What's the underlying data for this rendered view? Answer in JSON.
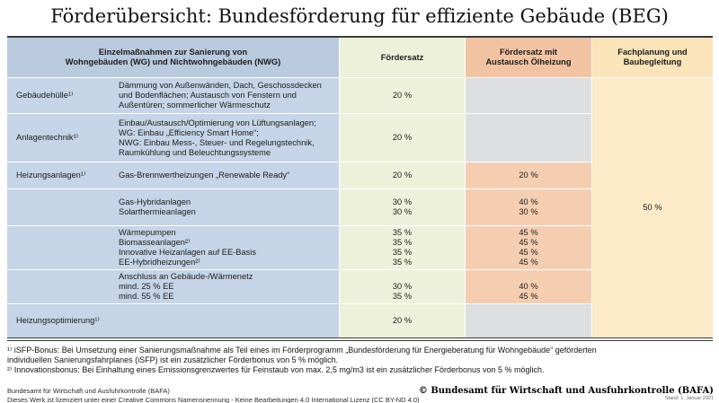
{
  "title": "Förderübersicht: Bundesförderung für effiziente Gebäude (BEG)",
  "table": {
    "headers": {
      "measures": "Einzelmaßnahmen zur Sanierung von\nWohngebäuden (WG) und Nichtwohngebäuden (NWG)",
      "rate": "Fördersatz",
      "rate_oil": "Fördersatz mit\nAustausch Ölheizung",
      "planning": "Fachplanung und\nBaubegleitung"
    },
    "planning_value": "50 %",
    "rows": [
      {
        "category": "Gebäudehülle¹⁾",
        "measures": "Dämmung von Außenwänden, Dach, Geschossdecken\nund Bodenflächen; Austausch von Fenstern und\nAußentüren; sommerlicher Wärmeschutz",
        "rate": "20 %",
        "rate_oil": ""
      },
      {
        "category": "Anlagentechnik¹⁾",
        "measures": "Einbau/Austausch/Optimierung von Lüftungsanlagen;\nWG: Einbau „Efficiency Smart Home“;\nNWG: Einbau Mess-, Steuer- und Regelungstechnik,\nRaumkühlung und Beleuchtungssysteme",
        "rate": "20 %",
        "rate_oil": ""
      },
      {
        "category": "Heizungsanlagen¹⁾",
        "measures": "Gas-Brennwertheizungen „Renewable Ready“",
        "rate": "20 %",
        "rate_oil": "20 %"
      },
      {
        "category": "",
        "measures": "Gas-Hybridanlagen\nSolarthermieanlagen",
        "rate": "30 %\n30 %",
        "rate_oil": "40 %\n30 %"
      },
      {
        "category": "",
        "measures": "Wärmepumpen\nBiomasseanlagen²⁾\nInnovative Heizanlagen auf EE-Basis\nEE-Hybridheizungen²⁾",
        "rate": "35 %\n35 %\n35 %\n35 %",
        "rate_oil": "45 %\n45 %\n45 %\n45 %"
      },
      {
        "category": "",
        "measures": "Anschluss an Gebäude-/Wärmenetz\nmind. 25 % EE\nmind. 55 % EE",
        "rate": " \n30 %\n35 %",
        "rate_oil": " \n40 %\n45 %"
      },
      {
        "category": "Heizungsoptimierung¹⁾",
        "measures": "",
        "rate": "20 %",
        "rate_oil": ""
      }
    ]
  },
  "footnotes": [
    "¹⁾ iSFP-Bonus: Bei Umsetzung einer Sanierungsmaßnahme als Teil eines im Förderprogramm „Bundesförderung für Energieberatung für Wohngebäude“ geförderten individuellen Sanierungsfahrplanes (iSFP) ist ein zusätzlicher Förderbonus von 5 % möglich.",
    "²⁾ Innovationsbonus: Bei Einhaltung eines Emissionsgrenzwertes für Feinstaub von max. 2,5 mg/m3 ist ein zusätzlicher Förderbonus von 5 % möglich."
  ],
  "footer": {
    "left_line1": "Bundesamt für Wirtschaft und Ausfuhrkontrolle (BAFA)",
    "left_line2": "Dieses Werk ist lizenziert unter einer Creative Commons Namensnennung - Keine Bearbeitungen 4.0 International Lizenz (CC BY-ND 4.0)",
    "copyright": "© Bundesamt für Wirtschaft und Ausfuhrkontrolle (BAFA)",
    "stand": "Stand: 1. Januar 2021"
  },
  "colors": {
    "blue_header": "#b9c9de",
    "blue_body": "#c5d4e6",
    "green": "#edf1da",
    "salmon_header": "#f2c3a3",
    "salmon_body": "#f5ceb2",
    "gray": "#dcdee0",
    "orange_header": "#fbe3ba",
    "orange_body": "#fdeac8",
    "text": "#1c1c1c",
    "border_dark": "#3b3b3b"
  }
}
